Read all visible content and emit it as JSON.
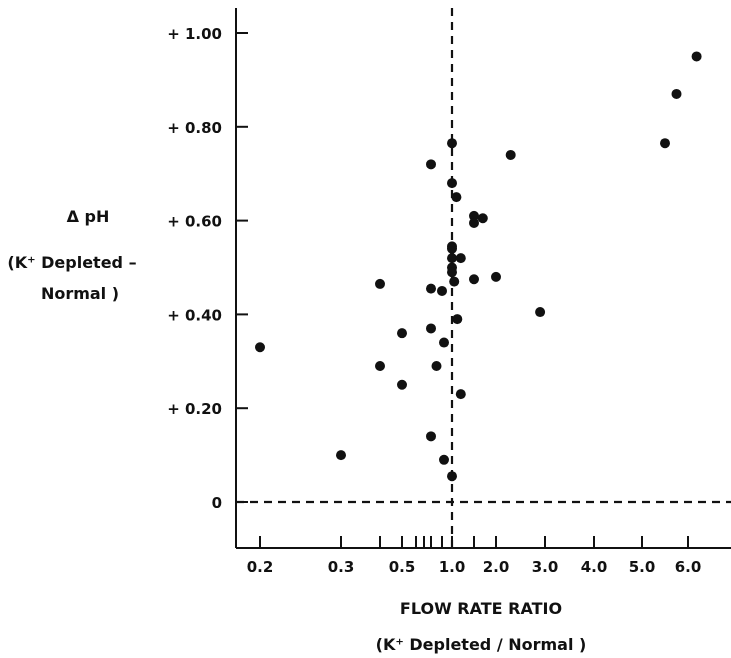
{
  "chart_data": {
    "type": "scatter",
    "x_tick_labels": [
      "0.2",
      "0.3",
      "0.5",
      "1.0",
      "2.0",
      "3.0",
      "4.0",
      "5.0",
      "6.0"
    ],
    "x_tick_values": [
      0.2,
      0.3,
      0.5,
      1.0,
      2.0,
      3.0,
      4.0,
      5.0,
      6.0
    ],
    "x_extra_ticks": [
      0.4,
      0.6,
      0.7,
      0.8,
      0.9,
      1.5
    ],
    "x_scale": "categorical-ratio (non-uniform, hand-spaced ticks)",
    "y_tick_labels": [
      "0",
      "+ 0.20",
      "+ 0.40",
      "+ 0.60",
      "+ 0.80",
      "+  1.00"
    ],
    "y_tick_values": [
      0,
      0.2,
      0.4,
      0.6,
      0.8,
      1.0
    ],
    "ylim": [
      -0.1,
      1.05
    ],
    "ylabel_lines": [
      "Δ pH",
      "(K⁺ Depleted –",
      "Normal )"
    ],
    "xlabel_lines": [
      "FLOW RATE RATIO",
      "(K⁺ Depleted / Normal )"
    ],
    "reference_lines": {
      "x": 1.0,
      "y": 0
    },
    "grid": false,
    "points": [
      {
        "x": 0.2,
        "y": 0.33
      },
      {
        "x": 0.3,
        "y": 0.1
      },
      {
        "x": 0.4,
        "y": 0.465
      },
      {
        "x": 0.4,
        "y": 0.29
      },
      {
        "x": 0.5,
        "y": 0.36
      },
      {
        "x": 0.5,
        "y": 0.25
      },
      {
        "x": 0.8,
        "y": 0.72
      },
      {
        "x": 0.8,
        "y": 0.455
      },
      {
        "x": 0.8,
        "y": 0.37
      },
      {
        "x": 0.8,
        "y": 0.14
      },
      {
        "x": 0.85,
        "y": 0.29
      },
      {
        "x": 0.9,
        "y": 0.45
      },
      {
        "x": 0.92,
        "y": 0.34
      },
      {
        "x": 0.92,
        "y": 0.09
      },
      {
        "x": 1.0,
        "y": 0.765
      },
      {
        "x": 1.0,
        "y": 0.68
      },
      {
        "x": 1.0,
        "y": 0.545
      },
      {
        "x": 1.0,
        "y": 0.54
      },
      {
        "x": 1.0,
        "y": 0.52
      },
      {
        "x": 1.0,
        "y": 0.5
      },
      {
        "x": 1.0,
        "y": 0.49
      },
      {
        "x": 1.0,
        "y": 0.055
      },
      {
        "x": 1.05,
        "y": 0.47
      },
      {
        "x": 1.1,
        "y": 0.65
      },
      {
        "x": 1.12,
        "y": 0.39
      },
      {
        "x": 1.2,
        "y": 0.52
      },
      {
        "x": 1.2,
        "y": 0.23
      },
      {
        "x": 1.5,
        "y": 0.61
      },
      {
        "x": 1.5,
        "y": 0.595
      },
      {
        "x": 1.5,
        "y": 0.475
      },
      {
        "x": 1.7,
        "y": 0.605
      },
      {
        "x": 2.0,
        "y": 0.48
      },
      {
        "x": 2.3,
        "y": 0.74
      },
      {
        "x": 2.9,
        "y": 0.405
      },
      {
        "x": 5.5,
        "y": 0.765
      },
      {
        "x": 5.75,
        "y": 0.87
      },
      {
        "x": 6.2,
        "y": 0.95
      }
    ]
  }
}
